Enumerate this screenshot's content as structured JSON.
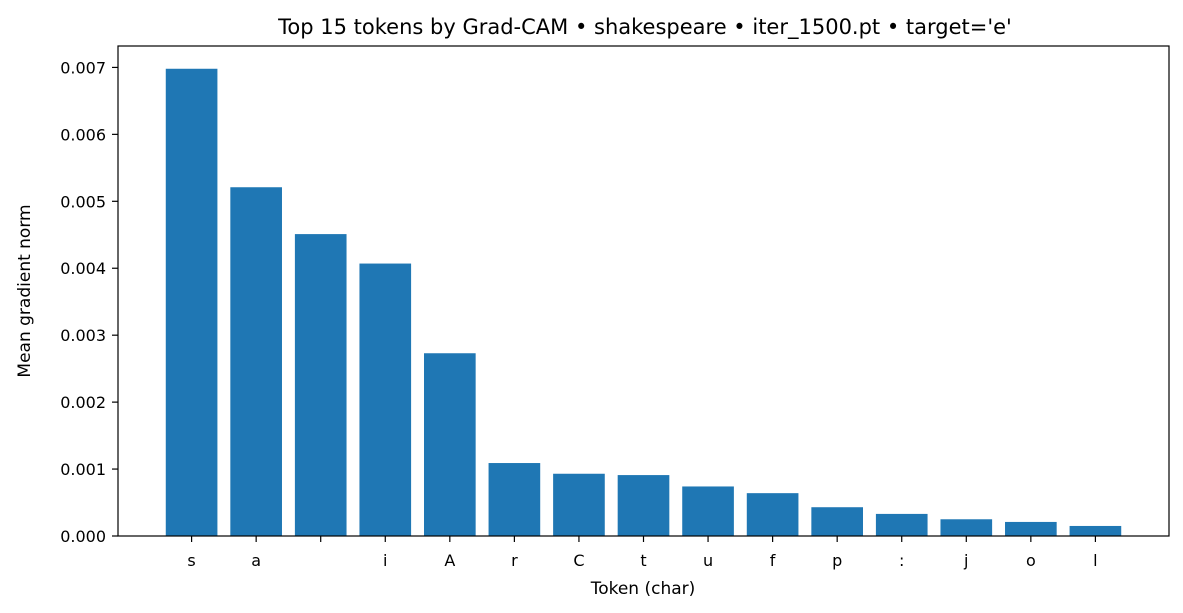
{
  "chart_data": {
    "type": "bar",
    "title": "Top 15 tokens by Grad-CAM • shakespeare • iter_1500.pt • target='e'",
    "xlabel": "Token (char)",
    "ylabel": "Mean gradient norm",
    "categories": [
      "s",
      "a",
      " ",
      "i",
      "A",
      "r",
      "C",
      "t",
      "u",
      "f",
      "p",
      ":",
      "j",
      "o",
      "l"
    ],
    "values": [
      0.00698,
      0.00521,
      0.00451,
      0.00407,
      0.00273,
      0.00109,
      0.00093,
      0.00091,
      0.00074,
      0.00064,
      0.00043,
      0.00033,
      0.00025,
      0.00021,
      0.00015
    ],
    "ylim": [
      0,
      0.00732
    ],
    "yticks": [
      "0.000",
      "0.001",
      "0.002",
      "0.003",
      "0.004",
      "0.005",
      "0.006",
      "0.007"
    ],
    "bar_color": "#1f77b4",
    "grid": false,
    "legend": "none"
  }
}
